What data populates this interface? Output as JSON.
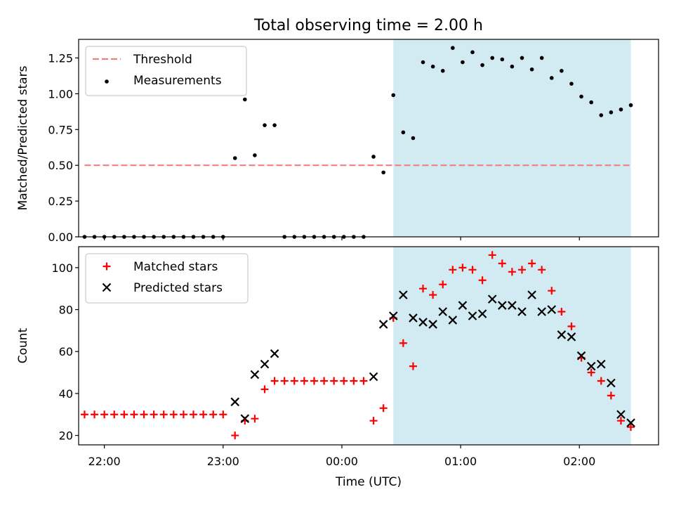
{
  "figure": {
    "title": "Total observing time = 2.00 h",
    "xlabel": "Time (UTC)",
    "x_ticks": [
      "22:00",
      "23:00",
      "00:00",
      "01:00",
      "02:00"
    ],
    "shaded_region": {
      "from": "00:26",
      "to": "02:26",
      "color": "#add8e6"
    }
  },
  "chart_data": [
    {
      "type": "scatter",
      "ylabel": "Matched/Predicted stars",
      "ylim": [
        0,
        1.38
      ],
      "yticks": [
        "0.00",
        "0.25",
        "0.50",
        "0.75",
        "1.00",
        "1.25"
      ],
      "xlim": [
        "21:47",
        "02:40"
      ],
      "legend_position": "top-left",
      "threshold": {
        "name": "Threshold",
        "value": 0.5,
        "from": "21:50",
        "to": "02:26",
        "color": "#f08080",
        "style": "dashed"
      },
      "series": [
        {
          "name": "Measurements",
          "color": "#000000",
          "marker": "dot",
          "points": [
            [
              "21:50",
              0.0
            ],
            [
              "21:55",
              0.0
            ],
            [
              "22:00",
              0.0
            ],
            [
              "22:05",
              0.0
            ],
            [
              "22:10",
              0.0
            ],
            [
              "22:15",
              0.0
            ],
            [
              "22:20",
              0.0
            ],
            [
              "22:25",
              0.0
            ],
            [
              "22:30",
              0.0
            ],
            [
              "22:35",
              0.0
            ],
            [
              "22:40",
              0.0
            ],
            [
              "22:45",
              0.0
            ],
            [
              "22:50",
              0.0
            ],
            [
              "22:55",
              0.0
            ],
            [
              "23:00",
              0.0
            ],
            [
              "23:06",
              0.55
            ],
            [
              "23:11",
              0.96
            ],
            [
              "23:16",
              0.57
            ],
            [
              "23:21",
              0.78
            ],
            [
              "23:26",
              0.78
            ],
            [
              "23:31",
              0.0
            ],
            [
              "23:36",
              0.0
            ],
            [
              "23:41",
              0.0
            ],
            [
              "23:46",
              0.0
            ],
            [
              "23:51",
              0.0
            ],
            [
              "23:56",
              0.0
            ],
            [
              "00:01",
              0.0
            ],
            [
              "00:06",
              0.0
            ],
            [
              "00:11",
              0.0
            ],
            [
              "00:16",
              0.56
            ],
            [
              "00:21",
              0.45
            ],
            [
              "00:26",
              0.99
            ],
            [
              "00:31",
              0.73
            ],
            [
              "00:36",
              0.69
            ],
            [
              "00:41",
              1.22
            ],
            [
              "00:46",
              1.19
            ],
            [
              "00:51",
              1.16
            ],
            [
              "00:56",
              1.32
            ],
            [
              "01:01",
              1.22
            ],
            [
              "01:06",
              1.29
            ],
            [
              "01:11",
              1.2
            ],
            [
              "01:16",
              1.25
            ],
            [
              "01:21",
              1.24
            ],
            [
              "01:26",
              1.19
            ],
            [
              "01:31",
              1.25
            ],
            [
              "01:36",
              1.17
            ],
            [
              "01:41",
              1.25
            ],
            [
              "01:46",
              1.11
            ],
            [
              "01:51",
              1.16
            ],
            [
              "01:56",
              1.07
            ],
            [
              "02:01",
              0.98
            ],
            [
              "02:06",
              0.94
            ],
            [
              "02:11",
              0.85
            ],
            [
              "02:16",
              0.87
            ],
            [
              "02:21",
              0.89
            ],
            [
              "02:26",
              0.92
            ]
          ]
        }
      ]
    },
    {
      "type": "scatter",
      "ylabel": "Count",
      "ylim": [
        15.5,
        110
      ],
      "yticks": [
        "20",
        "40",
        "60",
        "80",
        "100"
      ],
      "xlim": [
        "21:47",
        "02:40"
      ],
      "legend_position": "top-left",
      "series": [
        {
          "name": "Matched stars",
          "color": "#ff0000",
          "marker": "plus",
          "points": [
            [
              "21:50",
              30
            ],
            [
              "21:55",
              30
            ],
            [
              "22:00",
              30
            ],
            [
              "22:05",
              30
            ],
            [
              "22:10",
              30
            ],
            [
              "22:15",
              30
            ],
            [
              "22:20",
              30
            ],
            [
              "22:25",
              30
            ],
            [
              "22:30",
              30
            ],
            [
              "22:35",
              30
            ],
            [
              "22:40",
              30
            ],
            [
              "22:45",
              30
            ],
            [
              "22:50",
              30
            ],
            [
              "22:55",
              30
            ],
            [
              "23:00",
              30
            ],
            [
              "23:06",
              20
            ],
            [
              "23:11",
              27
            ],
            [
              "23:16",
              28
            ],
            [
              "23:21",
              42
            ],
            [
              "23:26",
              46
            ],
            [
              "23:31",
              46
            ],
            [
              "23:36",
              46
            ],
            [
              "23:41",
              46
            ],
            [
              "23:46",
              46
            ],
            [
              "23:51",
              46
            ],
            [
              "23:56",
              46
            ],
            [
              "00:01",
              46
            ],
            [
              "00:06",
              46
            ],
            [
              "00:11",
              46
            ],
            [
              "00:16",
              27
            ],
            [
              "00:21",
              33
            ],
            [
              "00:26",
              76
            ],
            [
              "00:31",
              64
            ],
            [
              "00:36",
              53
            ],
            [
              "00:41",
              90
            ],
            [
              "00:46",
              87
            ],
            [
              "00:51",
              92
            ],
            [
              "00:56",
              99
            ],
            [
              "01:01",
              100
            ],
            [
              "01:06",
              99
            ],
            [
              "01:11",
              94
            ],
            [
              "01:16",
              106
            ],
            [
              "01:21",
              102
            ],
            [
              "01:26",
              98
            ],
            [
              "01:31",
              99
            ],
            [
              "01:36",
              102
            ],
            [
              "01:41",
              99
            ],
            [
              "01:46",
              89
            ],
            [
              "01:51",
              79
            ],
            [
              "01:56",
              72
            ],
            [
              "02:01",
              57
            ],
            [
              "02:06",
              50
            ],
            [
              "02:11",
              46
            ],
            [
              "02:16",
              39
            ],
            [
              "02:21",
              27
            ],
            [
              "02:26",
              24
            ]
          ]
        },
        {
          "name": "Predicted stars",
          "color": "#000000",
          "marker": "x",
          "points": [
            [
              "23:06",
              36
            ],
            [
              "23:11",
              28
            ],
            [
              "23:16",
              49
            ],
            [
              "23:21",
              54
            ],
            [
              "23:26",
              59
            ],
            [
              "00:16",
              48
            ],
            [
              "00:21",
              73
            ],
            [
              "00:26",
              77
            ],
            [
              "00:31",
              87
            ],
            [
              "00:36",
              76
            ],
            [
              "00:41",
              74
            ],
            [
              "00:46",
              73
            ],
            [
              "00:51",
              79
            ],
            [
              "00:56",
              75
            ],
            [
              "01:01",
              82
            ],
            [
              "01:06",
              77
            ],
            [
              "01:11",
              78
            ],
            [
              "01:16",
              85
            ],
            [
              "01:21",
              82
            ],
            [
              "01:26",
              82
            ],
            [
              "01:31",
              79
            ],
            [
              "01:36",
              87
            ],
            [
              "01:41",
              79
            ],
            [
              "01:46",
              80
            ],
            [
              "01:51",
              68
            ],
            [
              "01:56",
              67
            ],
            [
              "02:01",
              58
            ],
            [
              "02:06",
              53
            ],
            [
              "02:11",
              54
            ],
            [
              "02:16",
              45
            ],
            [
              "02:21",
              30
            ],
            [
              "02:26",
              26
            ]
          ]
        }
      ]
    }
  ]
}
